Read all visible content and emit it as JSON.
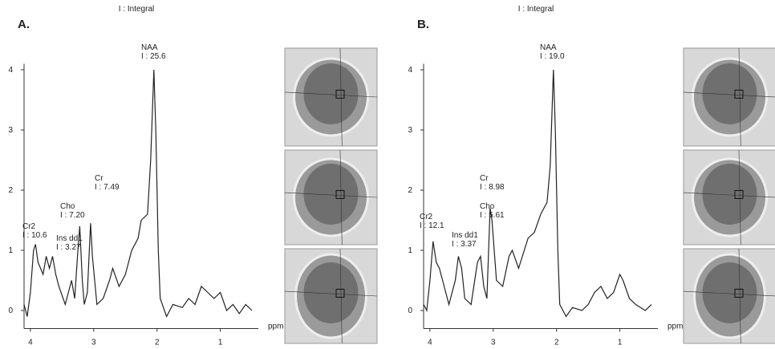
{
  "chart_data": [
    {
      "type": "line",
      "panel_label": "A.",
      "title": "I : Integral",
      "x_label": "ppm",
      "xlim": [
        4.1,
        0.4
      ],
      "ylim": [
        -0.3,
        4.1
      ],
      "xticks": [
        4,
        3,
        2,
        1
      ],
      "yticks": [
        0,
        1,
        2,
        3,
        4
      ],
      "x": [
        4.1,
        4.05,
        4.0,
        3.95,
        3.92,
        3.88,
        3.8,
        3.75,
        3.7,
        3.65,
        3.6,
        3.55,
        3.45,
        3.35,
        3.3,
        3.25,
        3.22,
        3.18,
        3.15,
        3.1,
        3.05,
        3.02,
        2.95,
        2.85,
        2.75,
        2.7,
        2.6,
        2.5,
        2.4,
        2.3,
        2.25,
        2.15,
        2.1,
        2.05,
        2.02,
        1.98,
        1.95,
        1.85,
        1.75,
        1.6,
        1.5,
        1.4,
        1.3,
        1.2,
        1.1,
        1.0,
        0.9,
        0.8,
        0.7,
        0.6,
        0.5
      ],
      "series": [
        {
          "color": "#222222",
          "values": [
            0.1,
            -0.1,
            0.3,
            1.0,
            1.1,
            0.8,
            0.6,
            0.9,
            0.7,
            0.9,
            0.6,
            0.4,
            0.1,
            0.5,
            0.2,
            1.0,
            1.4,
            0.5,
            0.1,
            0.3,
            1.45,
            0.9,
            0.1,
            0.2,
            0.5,
            0.7,
            0.4,
            0.6,
            1.0,
            1.2,
            1.5,
            1.6,
            2.5,
            4.0,
            3.0,
            1.0,
            0.2,
            -0.1,
            0.1,
            0.05,
            0.2,
            0.1,
            0.4,
            0.3,
            0.2,
            0.3,
            0.0,
            0.1,
            -0.05,
            0.1,
            0.0
          ]
        }
      ],
      "annotations": [
        {
          "label": "Cr2",
          "text": "I : 10.6"
        },
        {
          "label": "Ins dd1",
          "text": "I : 3.27"
        },
        {
          "label": "Cho",
          "text": "I : 7.20"
        },
        {
          "label": "Cr",
          "text": "I : 7.49"
        },
        {
          "label": "NAA",
          "text": "I : 25.6"
        }
      ]
    },
    {
      "type": "line",
      "panel_label": "B.",
      "title": "I : Integral",
      "x_label": "ppm",
      "xlim": [
        4.1,
        0.4
      ],
      "ylim": [
        -0.3,
        4.1
      ],
      "xticks": [
        4,
        3,
        2,
        1
      ],
      "yticks": [
        0,
        1,
        2,
        3,
        4
      ],
      "x": [
        4.1,
        4.05,
        4.0,
        3.95,
        3.9,
        3.85,
        3.75,
        3.7,
        3.6,
        3.55,
        3.5,
        3.45,
        3.35,
        3.25,
        3.2,
        3.15,
        3.1,
        3.05,
        3.02,
        2.95,
        2.85,
        2.75,
        2.7,
        2.6,
        2.45,
        2.35,
        2.25,
        2.15,
        2.1,
        2.05,
        2.02,
        1.98,
        1.95,
        1.85,
        1.75,
        1.6,
        1.5,
        1.4,
        1.3,
        1.2,
        1.1,
        1.0,
        0.95,
        0.85,
        0.75,
        0.6,
        0.5
      ],
      "series": [
        {
          "color": "#222222",
          "values": [
            0.1,
            0.0,
            0.5,
            1.15,
            0.8,
            0.7,
            0.3,
            0.1,
            0.5,
            0.9,
            0.7,
            0.2,
            0.1,
            0.8,
            0.9,
            0.4,
            0.2,
            1.7,
            1.5,
            0.5,
            0.4,
            0.9,
            1.0,
            0.7,
            1.2,
            1.3,
            1.6,
            1.8,
            2.4,
            4.0,
            3.0,
            1.0,
            0.1,
            -0.1,
            0.05,
            0.0,
            0.1,
            0.3,
            0.4,
            0.2,
            0.3,
            0.6,
            0.5,
            0.2,
            0.1,
            0.0,
            0.1
          ]
        }
      ],
      "annotations": [
        {
          "label": "Cr2",
          "text": "I : 12.1"
        },
        {
          "label": "Ins dd1",
          "text": "I : 3.37"
        },
        {
          "label": "Cho",
          "text": "I : 5.61"
        },
        {
          "label": "Cr",
          "text": "I : 8.98"
        },
        {
          "label": "NAA",
          "text": "I : 19.0"
        }
      ]
    }
  ]
}
